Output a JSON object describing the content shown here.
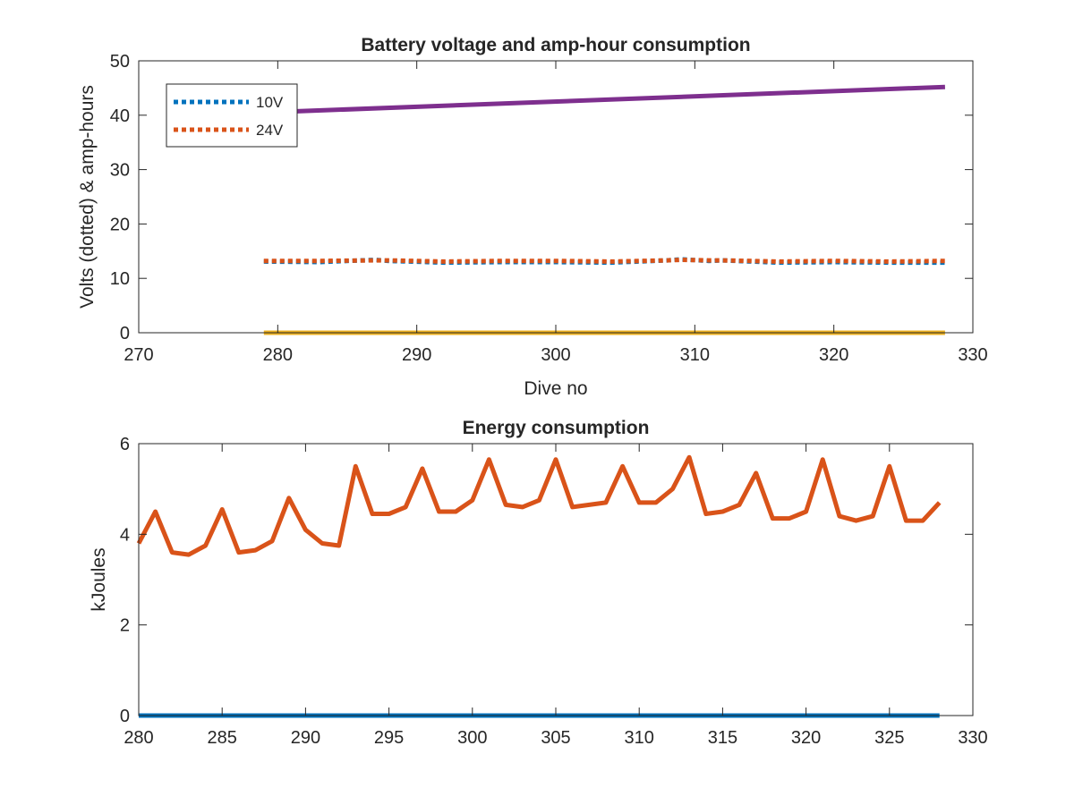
{
  "chart_data": [
    {
      "type": "line",
      "title": "Battery voltage and amp-hour consumption",
      "xlabel": "Dive no",
      "ylabel": "Volts (dotted) & amp-hours",
      "xlim": [
        270,
        330
      ],
      "ylim": [
        0,
        50
      ],
      "xticks": [
        270,
        280,
        290,
        300,
        310,
        320,
        330
      ],
      "yticks": [
        0,
        10,
        20,
        30,
        40,
        50
      ],
      "legend_placement": "top-left",
      "series": [
        {
          "name": "10V",
          "color": "#0072BD",
          "style": "dotted",
          "x": [
            279,
            283,
            287,
            288,
            292,
            296,
            300,
            304,
            308,
            309,
            311,
            312,
            316,
            320,
            324,
            328
          ],
          "y": [
            13.1,
            13.0,
            13.4,
            13.2,
            12.9,
            13.0,
            13.0,
            12.9,
            13.3,
            13.5,
            13.2,
            13.3,
            12.9,
            13.0,
            12.9,
            12.9
          ]
        },
        {
          "name": "24V",
          "color": "#D95319",
          "style": "dotted",
          "x": [
            279,
            283,
            287,
            288,
            292,
            296,
            300,
            304,
            308,
            309,
            311,
            312,
            316,
            320,
            324,
            328
          ],
          "y": [
            13.2,
            13.2,
            13.3,
            13.3,
            13.1,
            13.2,
            13.2,
            13.1,
            13.3,
            13.4,
            13.3,
            13.3,
            13.1,
            13.2,
            13.1,
            13.2
          ]
        },
        {
          "color": "#EDB120",
          "style": "solid",
          "x": [
            279,
            328
          ],
          "y": [
            0,
            0
          ]
        },
        {
          "color": "#7E2F8E",
          "style": "solid",
          "x": [
            279,
            328
          ],
          "y": [
            40.5,
            45.2
          ]
        }
      ]
    },
    {
      "type": "line",
      "title": "Energy consumption",
      "xlabel": "",
      "ylabel": "kJoules",
      "xlim": [
        280,
        330
      ],
      "ylim": [
        0,
        6
      ],
      "xticks": [
        280,
        285,
        290,
        295,
        300,
        305,
        310,
        315,
        320,
        325,
        330
      ],
      "yticks": [
        0,
        2,
        4,
        6
      ],
      "series": [
        {
          "color": "#0072BD",
          "style": "solid",
          "x": [
            280,
            328
          ],
          "y": [
            0,
            0
          ]
        },
        {
          "color": "#D95319",
          "style": "solid",
          "x": [
            280,
            281,
            282,
            283,
            284,
            285,
            286,
            287,
            288,
            289,
            290,
            291,
            292,
            293,
            294,
            295,
            296,
            297,
            298,
            299,
            300,
            301,
            302,
            303,
            304,
            305,
            306,
            307,
            308,
            309,
            310,
            311,
            312,
            313,
            314,
            315,
            316,
            317,
            318,
            319,
            320,
            321,
            322,
            323,
            324,
            325,
            326,
            327,
            328
          ],
          "y": [
            3.8,
            4.5,
            3.6,
            3.55,
            3.75,
            4.55,
            3.6,
            3.65,
            3.85,
            4.8,
            4.1,
            3.8,
            3.75,
            5.5,
            4.45,
            4.45,
            4.6,
            5.45,
            4.5,
            4.5,
            4.75,
            5.65,
            4.65,
            4.6,
            4.75,
            5.65,
            4.6,
            4.65,
            4.7,
            5.5,
            4.7,
            4.7,
            5.0,
            5.7,
            4.45,
            4.5,
            4.65,
            5.35,
            4.35,
            4.35,
            4.5,
            5.65,
            4.4,
            4.3,
            4.4,
            5.5,
            4.3,
            4.3,
            4.7
          ]
        }
      ]
    }
  ]
}
